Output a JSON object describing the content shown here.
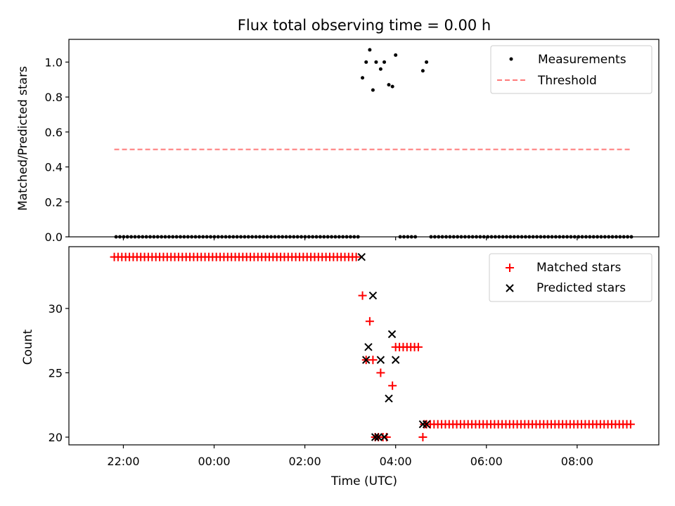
{
  "figure": {
    "title": "Flux total observing time = 0.00 h"
  },
  "chart_data": [
    {
      "type": "scatter",
      "panel": "top",
      "title": "Flux total observing time = 0.00 h",
      "xlabel": "",
      "ylabel": "Matched/Predicted stars",
      "x_unit": "hours relative to 00:00 UTC",
      "xlim": [
        -3.2,
        9.8
      ],
      "ylim": [
        0.0,
        1.13
      ],
      "yticks": [
        0.0,
        0.2,
        0.4,
        0.6,
        0.8,
        1.0
      ],
      "ytick_labels": [
        "0.0",
        "0.2",
        "0.4",
        "0.6",
        "0.8",
        "1.0"
      ],
      "grid": false,
      "legend_location": "top-right",
      "series": [
        {
          "name": "Measurements",
          "kind": "points",
          "color": "#000000",
          "zero_runs": [
            {
              "from": -2.16,
              "to": 3.22,
              "step": 0.0833
            },
            {
              "from": 4.1,
              "to": 4.5,
              "step": 0.0833
            },
            {
              "from": 4.78,
              "to": 9.25,
              "step": 0.0833
            }
          ],
          "points": [
            [
              3.27,
              0.91
            ],
            [
              3.35,
              1.0
            ],
            [
              3.43,
              1.07
            ],
            [
              3.5,
              0.84
            ],
            [
              3.57,
              1.0
            ],
            [
              3.67,
              0.96
            ],
            [
              3.75,
              1.0
            ],
            [
              3.85,
              0.87
            ],
            [
              3.93,
              0.86
            ],
            [
              4.0,
              1.04
            ],
            [
              4.6,
              0.95
            ],
            [
              4.68,
              1.0
            ]
          ]
        },
        {
          "name": "Threshold",
          "kind": "dashed-line",
          "color": "#ff7a7a",
          "x": [
            -2.2,
            9.2
          ],
          "y": [
            0.5,
            0.5
          ]
        }
      ]
    },
    {
      "type": "scatter",
      "panel": "bottom",
      "xlabel": "Time (UTC)",
      "ylabel": "Count",
      "x_unit": "hours relative to 00:00 UTC",
      "xlim": [
        -3.2,
        9.8
      ],
      "ylim": [
        19.4,
        34.8
      ],
      "yticks": [
        20,
        25,
        30
      ],
      "ytick_labels": [
        "20",
        "25",
        "30"
      ],
      "xticks": [
        -2,
        0,
        2,
        4,
        6,
        8
      ],
      "xtick_labels": [
        "22:00",
        "00:00",
        "02:00",
        "04:00",
        "06:00",
        "08:00"
      ],
      "grid": false,
      "legend_location": "top-right",
      "series": [
        {
          "name": "Matched stars",
          "marker": "plus",
          "color": "#ff0000",
          "runs": [
            {
              "from": -2.2,
              "to": 3.15,
              "step": 0.0833,
              "value": 34
            },
            {
              "from": 4.0,
              "to": 4.52,
              "step": 0.0833,
              "value": 27
            },
            {
              "from": 4.68,
              "to": 9.25,
              "step": 0.0833,
              "value": 21
            }
          ],
          "points": [
            [
              3.27,
              31
            ],
            [
              3.35,
              26
            ],
            [
              3.43,
              29
            ],
            [
              3.5,
              26
            ],
            [
              3.55,
              20
            ],
            [
              3.62,
              20
            ],
            [
              3.67,
              25
            ],
            [
              3.72,
              20
            ],
            [
              3.8,
              20
            ],
            [
              3.93,
              24
            ],
            [
              4.6,
              20
            ],
            [
              4.63,
              21
            ]
          ]
        },
        {
          "name": "Predicted stars",
          "marker": "x",
          "color": "#000000",
          "points": [
            [
              3.25,
              34
            ],
            [
              3.35,
              26
            ],
            [
              3.4,
              27
            ],
            [
              3.5,
              31
            ],
            [
              3.55,
              20
            ],
            [
              3.62,
              20
            ],
            [
              3.67,
              26
            ],
            [
              3.75,
              20
            ],
            [
              3.85,
              23
            ],
            [
              3.92,
              28
            ],
            [
              4.0,
              26
            ],
            [
              4.6,
              21
            ],
            [
              4.68,
              21
            ]
          ]
        }
      ]
    }
  ]
}
